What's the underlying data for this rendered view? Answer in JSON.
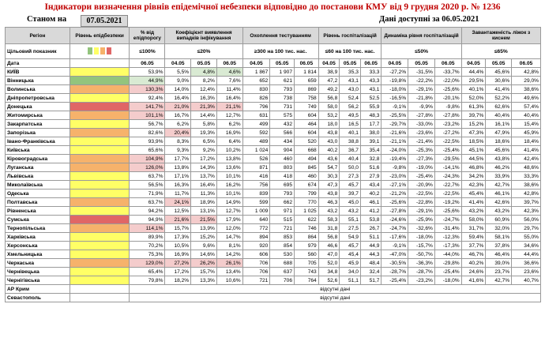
{
  "title": "Індикатори визначення рівнів епідемічної небезпеки відповідно до постанови КМУ від 9 грудня 2020 р. № 1236",
  "as_of_label": "Станом на",
  "as_of_date": "07.05.2021",
  "data_available": "Дані доступні за 06.05.2021",
  "headers": {
    "region": "Регіон",
    "level": "Рівень епідбезпеки",
    "pct_threshold": "% від епідпорогу",
    "detect_coef": "Коефіцієнт виявлення випадків інфікування",
    "testing": "Охоплення тестуванням",
    "hosp_level": "Рівень госпіталізацій",
    "hosp_dyn": "Динаміка рівня госпіталізацій",
    "bed_load": "Завантаженість ліжок з киснем"
  },
  "indicator_row": {
    "label": "Цільовий показник",
    "pct_threshold": "≤100%",
    "detect_coef": "≤20%",
    "testing": "≥300 на 100 тис. нас.",
    "hosp_level": "≤60 на 100 тис. нас.",
    "hosp_dyn": "≤50%",
    "bed_load": "≤65%"
  },
  "legend_colors": [
    "#93c47d",
    "#ffff66",
    "#f6b26b",
    "#e06666"
  ],
  "date_row": {
    "label": "Дата",
    "d1": "06.05",
    "dates": [
      "04.05",
      "05.05",
      "06.05"
    ]
  },
  "colors": {
    "title": "#c00000",
    "yellow": "#ffff66",
    "orange": "#f6b26b",
    "red": "#e06666",
    "green": "#93c47d",
    "pink": "#f4cccc",
    "lightgreen": "#d9ead3"
  },
  "rows": [
    {
      "region": "КИЇВ",
      "lvl": "y",
      "pct": "53,9%",
      "pc": "",
      "k": [
        "5,5%",
        "4,8%",
        "4,6%"
      ],
      "kc": [
        "",
        "g",
        "g"
      ],
      "t": [
        "1 867",
        "1 907",
        "1 814"
      ],
      "h": [
        "38,9",
        "35,3",
        "33,3"
      ],
      "d": [
        "-27,2%",
        "-31,5%",
        "-33,7%"
      ],
      "b": [
        "44,4%",
        "45,6%",
        "42,8%"
      ]
    },
    {
      "region": "Вінницька",
      "lvl": "gr",
      "pct": "44,9%",
      "pc": "g",
      "k": [
        "9,0%",
        "8,2%",
        "7,6%"
      ],
      "kc": [
        "",
        "",
        ""
      ],
      "t": [
        "652",
        "621",
        "659"
      ],
      "h": [
        "47,2",
        "43,1",
        "43,3"
      ],
      "d": [
        "-19,8%",
        "-22,2%",
        "-22,0%"
      ],
      "b": [
        "29,5%",
        "30,6%",
        "29,0%"
      ]
    },
    {
      "region": "Волинська",
      "lvl": "o",
      "pct": "130,3%",
      "pc": "p",
      "k": [
        "14,0%",
        "12,4%",
        "11,4%"
      ],
      "kc": [
        "",
        "",
        ""
      ],
      "t": [
        "830",
        "793",
        "869"
      ],
      "h": [
        "49,2",
        "43,0",
        "43,1"
      ],
      "d": [
        "-18,0%",
        "-29,1%",
        "-25,6%"
      ],
      "b": [
        "40,1%",
        "41,4%",
        "38,6%"
      ]
    },
    {
      "region": "Дніпропетровська",
      "lvl": "y",
      "pct": "92,4%",
      "pc": "",
      "k": [
        "16,4%",
        "16,3%",
        "16,4%"
      ],
      "kc": [
        "",
        "",
        ""
      ],
      "t": [
        "826",
        "738",
        "758"
      ],
      "h": [
        "56,8",
        "52,4",
        "52,5"
      ],
      "d": [
        "-16,5%",
        "-21,8%",
        "-20,1%"
      ],
      "b": [
        "52,0%",
        "52,2%",
        "49,6%"
      ]
    },
    {
      "region": "Донецька",
      "lvl": "r",
      "pct": "141,7%",
      "pc": "p",
      "k": [
        "21,0%",
        "21,3%",
        "21,1%"
      ],
      "kc": [
        "p",
        "p",
        "p"
      ],
      "t": [
        "796",
        "731",
        "749"
      ],
      "h": [
        "58,0",
        "56,2",
        "55,9"
      ],
      "d": [
        "-9,1%",
        "-9,9%",
        "-9,8%"
      ],
      "b": [
        "61,3%",
        "62,6%",
        "57,4%"
      ]
    },
    {
      "region": "Житомирська",
      "lvl": "o",
      "pct": "101,1%",
      "pc": "p",
      "k": [
        "16,7%",
        "14,4%",
        "12,7%"
      ],
      "kc": [
        "",
        "",
        ""
      ],
      "t": [
        "631",
        "575",
        "604"
      ],
      "h": [
        "53,2",
        "49,5",
        "48,3"
      ],
      "d": [
        "-25,5%",
        "-27,8%",
        "-27,8%"
      ],
      "b": [
        "39,7%",
        "40,4%",
        "40,4%"
      ]
    },
    {
      "region": "Закарпатська",
      "lvl": "y",
      "pct": "56,7%",
      "pc": "",
      "k": [
        "6,2%",
        "5,8%",
        "6,2%"
      ],
      "kc": [
        "",
        "",
        ""
      ],
      "t": [
        "499",
        "432",
        "464"
      ],
      "h": [
        "18,0",
        "16,5",
        "17,7"
      ],
      "d": [
        "-29,7%",
        "-33,0%",
        "-23,2%"
      ],
      "b": [
        "15,2%",
        "16,1%",
        "15,4%"
      ]
    },
    {
      "region": "Запорізька",
      "lvl": "o",
      "pct": "82,6%",
      "pc": "",
      "k": [
        "20,4%",
        "19,3%",
        "16,9%"
      ],
      "kc": [
        "p",
        "",
        ""
      ],
      "t": [
        "592",
        "566",
        "604"
      ],
      "h": [
        "43,8",
        "40,1",
        "38,0"
      ],
      "d": [
        "-21,6%",
        "-23,6%",
        "-27,2%"
      ],
      "b": [
        "47,3%",
        "47,9%",
        "45,9%"
      ]
    },
    {
      "region": "Івано-Франківська",
      "lvl": "y",
      "pct": "93,9%",
      "pc": "",
      "k": [
        "8,3%",
        "6,5%",
        "6,4%"
      ],
      "kc": [
        "",
        "",
        ""
      ],
      "t": [
        "489",
        "434",
        "520"
      ],
      "h": [
        "43,0",
        "38,8",
        "39,1"
      ],
      "d": [
        "-21,1%",
        "-21,4%",
        "-22,5%"
      ],
      "b": [
        "18,5%",
        "18,6%",
        "18,4%"
      ]
    },
    {
      "region": "Київська",
      "lvl": "y",
      "pct": "65,6%",
      "pc": "",
      "k": [
        "9,3%",
        "9,2%",
        "10,2%"
      ],
      "kc": [
        "",
        "",
        ""
      ],
      "t": [
        "1 024",
        "904",
        "668"
      ],
      "h": [
        "40,2",
        "36,7",
        "35,4"
      ],
      "d": [
        "-24,0%",
        "-25,3%",
        "-25,4%"
      ],
      "b": [
        "45,1%",
        "45,6%",
        "41,4%"
      ]
    },
    {
      "region": "Кіровоградська",
      "lvl": "o",
      "pct": "104,9%",
      "pc": "p",
      "k": [
        "17,7%",
        "17,2%",
        "13,8%"
      ],
      "kc": [
        "",
        "",
        ""
      ],
      "t": [
        "526",
        "460",
        "494"
      ],
      "h": [
        "43,6",
        "40,4",
        "32,8"
      ],
      "d": [
        "-19,4%",
        "-27,3%",
        "-29,5%"
      ],
      "b": [
        "44,5%",
        "43,8%",
        "42,4%"
      ]
    },
    {
      "region": "Луганська",
      "lvl": "o",
      "pct": "126,0%",
      "pc": "p",
      "k": [
        "13,8%",
        "14,3%",
        "13,6%"
      ],
      "kc": [
        "",
        "",
        ""
      ],
      "t": [
        "871",
        "803",
        "845"
      ],
      "h": [
        "54,7",
        "50,0",
        "51,6"
      ],
      "d": [
        "-9,8%",
        "-19,0%",
        "-14,1%"
      ],
      "b": [
        "46,8%",
        "46,2%",
        "48,6%"
      ]
    },
    {
      "region": "Львівська",
      "lvl": "y",
      "pct": "63,7%",
      "pc": "",
      "k": [
        "17,1%",
        "13,7%",
        "10,1%"
      ],
      "kc": [
        "",
        "",
        ""
      ],
      "t": [
        "416",
        "418",
        "460"
      ],
      "h": [
        "30,3",
        "27,3",
        "27,9"
      ],
      "d": [
        "-23,0%",
        "-25,4%",
        "-24,3%"
      ],
      "b": [
        "34,2%",
        "33,9%",
        "33,3%"
      ]
    },
    {
      "region": "Миколаївська",
      "lvl": "y",
      "pct": "56,5%",
      "pc": "",
      "k": [
        "16,3%",
        "16,4%",
        "16,2%"
      ],
      "kc": [
        "",
        "",
        ""
      ],
      "t": [
        "756",
        "695",
        "674"
      ],
      "h": [
        "47,3",
        "45,7",
        "43,4"
      ],
      "d": [
        "-27,1%",
        "-20,9%",
        "-22,7%"
      ],
      "b": [
        "42,3%",
        "42,7%",
        "38,6%"
      ]
    },
    {
      "region": "Одеська",
      "lvl": "y",
      "pct": "71,9%",
      "pc": "",
      "k": [
        "11,7%",
        "11,3%",
        "10,1%"
      ],
      "kc": [
        "",
        "",
        ""
      ],
      "t": [
        "839",
        "793",
        "799"
      ],
      "h": [
        "43,8",
        "39,7",
        "40,2"
      ],
      "d": [
        "-21,2%",
        "-22,5%",
        "-22,5%"
      ],
      "b": [
        "45,4%",
        "46,1%",
        "42,8%"
      ]
    },
    {
      "region": "Полтавська",
      "lvl": "o",
      "pct": "63,7%",
      "pc": "",
      "k": [
        "24,1%",
        "18,9%",
        "14,9%"
      ],
      "kc": [
        "p",
        "",
        ""
      ],
      "t": [
        "599",
        "662",
        "770"
      ],
      "h": [
        "46,3",
        "45,0",
        "46,1"
      ],
      "d": [
        "-25,6%",
        "-22,8%",
        "-19,2%"
      ],
      "b": [
        "41,4%",
        "42,6%",
        "39,7%"
      ]
    },
    {
      "region": "Рівненська",
      "lvl": "y",
      "pct": "94,2%",
      "pc": "",
      "k": [
        "12,5%",
        "13,1%",
        "12,7%"
      ],
      "kc": [
        "",
        "",
        ""
      ],
      "t": [
        "1 009",
        "971",
        "1 025"
      ],
      "h": [
        "43,2",
        "43,2",
        "41,2"
      ],
      "d": [
        "-27,8%",
        "-29,1%",
        "-25,6%"
      ],
      "b": [
        "43,2%",
        "43,2%",
        "42,3%"
      ]
    },
    {
      "region": "Сумська",
      "lvl": "r",
      "pct": "94,9%",
      "pc": "",
      "k": [
        "21,6%",
        "21,5%",
        "17,9%"
      ],
      "kc": [
        "p",
        "p",
        ""
      ],
      "t": [
        "640",
        "515",
        "622"
      ],
      "h": [
        "58,3",
        "55,1",
        "53,8"
      ],
      "d": [
        "-24,6%",
        "-25,9%",
        "-24,7%"
      ],
      "b": [
        "58,0%",
        "60,9%",
        "56,0%"
      ]
    },
    {
      "region": "Тернопільська",
      "lvl": "o",
      "pct": "114,1%",
      "pc": "p",
      "k": [
        "15,7%",
        "13,9%",
        "12,0%"
      ],
      "kc": [
        "",
        "",
        ""
      ],
      "t": [
        "772",
        "721",
        "746"
      ],
      "h": [
        "31,8",
        "27,5",
        "26,7"
      ],
      "d": [
        "-24,7%",
        "-32,6%",
        "-31,4%"
      ],
      "b": [
        "31,7%",
        "32,0%",
        "29,7%"
      ]
    },
    {
      "region": "Харківська",
      "lvl": "y",
      "pct": "89,9%",
      "pc": "",
      "k": [
        "17,3%",
        "15,2%",
        "14,7%"
      ],
      "kc": [
        "",
        "",
        ""
      ],
      "t": [
        "894",
        "853",
        "864"
      ],
      "h": [
        "56,8",
        "54,9",
        "51,1"
      ],
      "d": [
        "-17,6%",
        "-18,0%",
        "-12,3%"
      ],
      "b": [
        "59,4%",
        "58,1%",
        "55,0%"
      ]
    },
    {
      "region": "Херсонська",
      "lvl": "y",
      "pct": "70,2%",
      "pc": "",
      "k": [
        "10,5%",
        "9,6%",
        "8,1%"
      ],
      "kc": [
        "",
        "",
        ""
      ],
      "t": [
        "920",
        "854",
        "979"
      ],
      "h": [
        "46,6",
        "45,7",
        "44,9"
      ],
      "d": [
        "-9,1%",
        "-15,7%",
        "-17,3%"
      ],
      "b": [
        "37,7%",
        "37,8%",
        "34,6%"
      ]
    },
    {
      "region": "Хмельницька",
      "lvl": "y",
      "pct": "75,3%",
      "pc": "",
      "k": [
        "16,9%",
        "14,6%",
        "14,2%"
      ],
      "kc": [
        "",
        "",
        ""
      ],
      "t": [
        "606",
        "530",
        "560"
      ],
      "h": [
        "47,0",
        "45,4",
        "44,3"
      ],
      "d": [
        "-47,0%",
        "-50,7%",
        "-44,0%"
      ],
      "b": [
        "46,7%",
        "46,4%",
        "44,4%"
      ]
    },
    {
      "region": "Черкаська",
      "lvl": "o",
      "pct": "129,0%",
      "pc": "p",
      "k": [
        "27,2%",
        "26,2%",
        "26,1%"
      ],
      "kc": [
        "p",
        "p",
        "p"
      ],
      "t": [
        "706",
        "688",
        "705"
      ],
      "h": [
        "52,0",
        "45,9",
        "48,4"
      ],
      "d": [
        "-30,5%",
        "-36,3%",
        "-29,8%"
      ],
      "b": [
        "40,2%",
        "39,0%",
        "36,6%"
      ]
    },
    {
      "region": "Чернівецька",
      "lvl": "y",
      "pct": "65,4%",
      "pc": "",
      "k": [
        "17,2%",
        "15,7%",
        "13,4%"
      ],
      "kc": [
        "",
        "",
        ""
      ],
      "t": [
        "706",
        "637",
        "743"
      ],
      "h": [
        "34,8",
        "34,0",
        "32,4"
      ],
      "d": [
        "-28,7%",
        "-28,7%",
        "-25,4%"
      ],
      "b": [
        "24,6%",
        "23,7%",
        "23,6%"
      ]
    },
    {
      "region": "Чернігівська",
      "lvl": "y",
      "pct": "79,8%",
      "pc": "",
      "k": [
        "18,2%",
        "13,3%",
        "10,6%"
      ],
      "kc": [
        "",
        "",
        ""
      ],
      "t": [
        "721",
        "706",
        "764"
      ],
      "h": [
        "52,6",
        "51,1",
        "51,7"
      ],
      "d": [
        "-25,4%",
        "-23,2%",
        "-18,0%"
      ],
      "b": [
        "41,6%",
        "42,7%",
        "40,7%"
      ]
    }
  ],
  "na_rows": [
    {
      "region": "АР Крим",
      "text": "відсутні дані"
    },
    {
      "region": "Севастополь",
      "text": "відсутні дані"
    }
  ]
}
